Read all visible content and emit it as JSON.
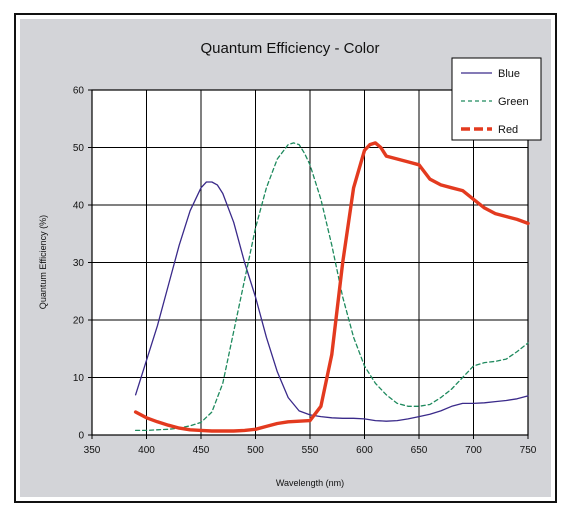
{
  "chart_data": {
    "type": "line",
    "title": "Quantum Efficiency - Color",
    "xlabel": "Wavelength (nm)",
    "ylabel": "Quantum Efficiency (%)",
    "xlim": [
      350,
      750
    ],
    "ylim": [
      0,
      60
    ],
    "xticks": [
      "350",
      "400",
      "450",
      "500",
      "550",
      "600",
      "650",
      "700",
      "750"
    ],
    "yticks": [
      "0",
      "10",
      "20",
      "30",
      "40",
      "50",
      "60"
    ],
    "grid": true,
    "legend_position": "top-right",
    "series": [
      {
        "name": "Blue",
        "color": "#3a2a8a",
        "style": "solid",
        "x": [
          390,
          400,
          410,
          420,
          430,
          440,
          450,
          455,
          460,
          465,
          470,
          480,
          490,
          500,
          510,
          520,
          530,
          540,
          550,
          560,
          570,
          580,
          590,
          600,
          610,
          620,
          630,
          640,
          650,
          660,
          670,
          680,
          690,
          700,
          710,
          720,
          730,
          740,
          750
        ],
        "y": [
          7,
          13,
          19,
          26,
          33,
          39,
          43,
          44,
          44,
          43.5,
          42,
          37,
          30,
          24,
          17,
          11,
          6.5,
          4.2,
          3.5,
          3.2,
          3.0,
          2.9,
          2.9,
          2.8,
          2.5,
          2.4,
          2.5,
          2.8,
          3.2,
          3.6,
          4.2,
          5.0,
          5.5,
          5.5,
          5.6,
          5.8,
          6.0,
          6.3,
          6.8
        ]
      },
      {
        "name": "Green",
        "color": "#1f8a5e",
        "style": "dashed",
        "x": [
          390,
          400,
          410,
          420,
          430,
          440,
          450,
          460,
          470,
          480,
          490,
          500,
          510,
          520,
          530,
          535,
          540,
          545,
          550,
          560,
          570,
          580,
          590,
          600,
          610,
          620,
          630,
          640,
          650,
          660,
          670,
          680,
          690,
          700,
          710,
          720,
          730,
          740,
          750
        ],
        "y": [
          0.8,
          0.8,
          0.9,
          1.0,
          1.2,
          1.6,
          2.2,
          4,
          9,
          18,
          27,
          36,
          43,
          48,
          50.5,
          50.8,
          50.5,
          49,
          47,
          41,
          33,
          24,
          17,
          12,
          9,
          7,
          5.5,
          5.0,
          5.0,
          5.3,
          6.5,
          8,
          10,
          12,
          12.6,
          12.8,
          13.2,
          14.5,
          16
        ]
      },
      {
        "name": "Red",
        "color": "#e33a1f",
        "style": "solid-thick",
        "x": [
          390,
          400,
          410,
          420,
          430,
          440,
          450,
          460,
          470,
          480,
          490,
          500,
          510,
          520,
          530,
          540,
          550,
          560,
          570,
          580,
          590,
          600,
          605,
          610,
          615,
          620,
          630,
          640,
          650,
          660,
          670,
          680,
          690,
          700,
          710,
          720,
          730,
          740,
          750
        ],
        "y": [
          4,
          3,
          2.3,
          1.7,
          1.2,
          0.9,
          0.8,
          0.7,
          0.7,
          0.7,
          0.8,
          1.0,
          1.5,
          2.0,
          2.3,
          2.4,
          2.5,
          5,
          14,
          30,
          43,
          49.5,
          50.5,
          50.8,
          50,
          48.5,
          48,
          47.5,
          47,
          44.5,
          43.5,
          43,
          42.5,
          41,
          39.5,
          38.5,
          38,
          37.5,
          36.8
        ]
      }
    ]
  }
}
